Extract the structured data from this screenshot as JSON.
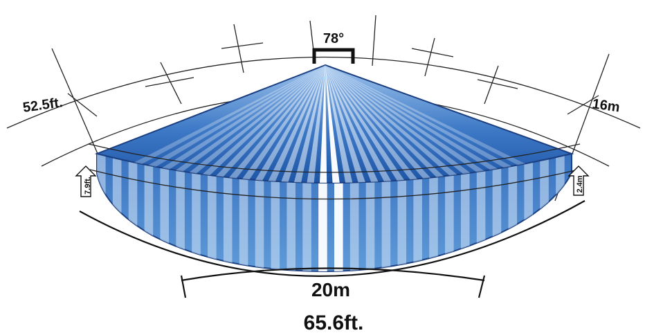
{
  "diagram": {
    "angle_label": "78°",
    "range_left_label": "52.5ft.",
    "range_right_label": "16m",
    "height_left_label": "7.9ft.",
    "height_right_label": "2.4m",
    "width_metric_label": "20m",
    "width_imperial_label": "65.6ft."
  },
  "colors": {
    "beam_dark": "#1f56a8",
    "beam_mid": "#4a86d0",
    "beam_light": "#cfe3f7",
    "outline": "#1b3f80",
    "line": "#111111"
  },
  "icons": [
    "sensor-bracket-icon",
    "left-height-arrow-icon",
    "right-height-arrow-icon"
  ]
}
